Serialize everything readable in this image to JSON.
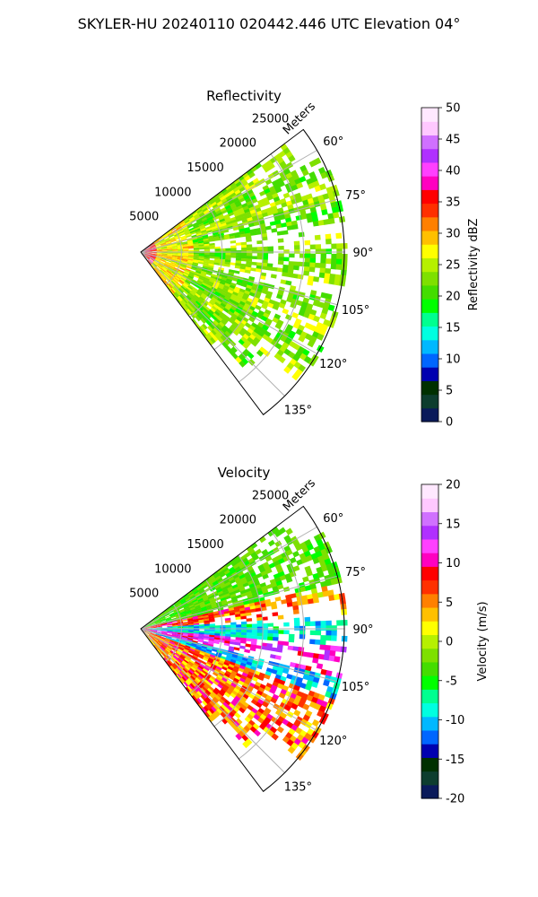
{
  "figure": {
    "suptitle": "SKYLER-HU  20240110  020442.446 UTC Elevation 04°"
  },
  "chart_data": [
    {
      "type": "polar-sector-field",
      "title": "Reflectivity",
      "radial_axis_label": "Meters",
      "radial_ticks": [
        5000,
        10000,
        15000,
        20000,
        25000
      ],
      "radial_range": [
        0,
        25000
      ],
      "azimuth_range_deg": [
        53,
        143
      ],
      "azimuth_ticks": [
        "60°",
        "75°",
        "90°",
        "105°",
        "120°",
        "135°"
      ],
      "grid": true,
      "colorbar": {
        "label": "Reflectivity dBZ",
        "range": [
          0,
          50
        ],
        "ticks": [
          0,
          5,
          10,
          15,
          20,
          25,
          30,
          35,
          40,
          45,
          50
        ],
        "colors": [
          "#0a1a5a",
          "#0d3d2e",
          "#003000",
          "#0000b0",
          "#0066ff",
          "#00b8ff",
          "#00ffe0",
          "#00ff90",
          "#00ff00",
          "#44dd00",
          "#7ee000",
          "#b6f000",
          "#ffff00",
          "#ffc000",
          "#ff8000",
          "#ff3000",
          "#ff0000",
          "#ff00c0",
          "#ff40ff",
          "#b030ff",
          "#d070ff",
          "#ffc8ff",
          "#ffe8ff"
        ]
      },
      "field_values_dbz": {
        "near_range_core": [
          30,
          38
        ],
        "main_echo": [
          20,
          30
        ],
        "outer_echo": [
          18,
          24
        ]
      }
    },
    {
      "type": "polar-sector-field",
      "title": "Velocity",
      "radial_axis_label": "Meters",
      "radial_ticks": [
        5000,
        10000,
        15000,
        20000,
        25000
      ],
      "radial_range": [
        0,
        25000
      ],
      "azimuth_range_deg": [
        53,
        143
      ],
      "azimuth_ticks": [
        "60°",
        "75°",
        "90°",
        "105°",
        "120°",
        "135°"
      ],
      "grid": true,
      "colorbar": {
        "label": "Velocity (m/s)",
        "range": [
          -20,
          20
        ],
        "ticks": [
          -20,
          -15,
          -10,
          -5,
          0,
          5,
          10,
          15,
          20
        ],
        "colors": [
          "#0a1a5a",
          "#0d3d2e",
          "#003000",
          "#0000b0",
          "#0066ff",
          "#00b8ff",
          "#00ffe0",
          "#00ff90",
          "#00ff00",
          "#44dd00",
          "#7ee000",
          "#b6f000",
          "#ffff00",
          "#ffc000",
          "#ff8000",
          "#ff3000",
          "#ff0000",
          "#ff00c0",
          "#ff40ff",
          "#b030ff",
          "#d070ff",
          "#ffc8ff",
          "#ffe8ff"
        ]
      },
      "field_values_ms": {
        "north_sector": [
          -5,
          0
        ],
        "inbound_band": [
          8,
          15
        ],
        "center_band": [
          -12,
          -8
        ],
        "southern_outbound": [
          5,
          12
        ]
      }
    }
  ]
}
